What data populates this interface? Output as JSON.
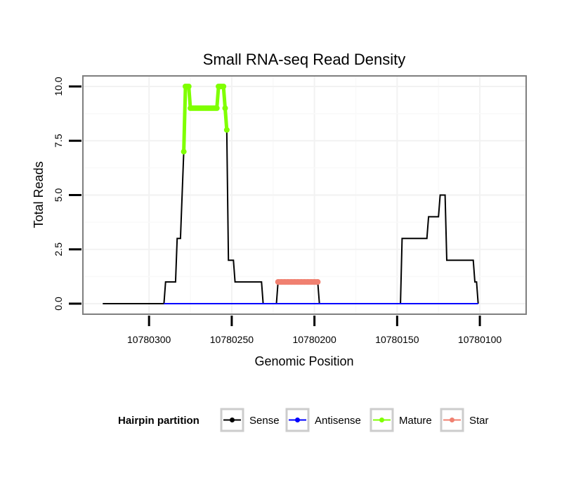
{
  "chart_data": {
    "type": "line",
    "title": "Small RNA-seq Read Density",
    "xlabel": "Genomic Position",
    "ylabel": "Total Reads",
    "xlim": [
      10780340,
      10780072
    ],
    "ylim": [
      0,
      10.5
    ],
    "x_reversed": true,
    "xticks": [
      10780300,
      10780250,
      10780200,
      10780150,
      10780100
    ],
    "xtick_labels": [
      "10780300",
      "10780250",
      "10780200",
      "10780150",
      "10780100"
    ],
    "yticks": [
      0,
      2.5,
      5,
      7.5,
      10
    ],
    "ytick_labels": [
      "0.0",
      "2.5",
      "5.0",
      "7.5",
      "10.0"
    ],
    "grid": true,
    "legend_title": "Hairpin partition",
    "legend_position": "bottom",
    "series": [
      {
        "name": "Sense",
        "color": "#000000",
        "points": [
          [
            10780328,
            0
          ],
          [
            10780291,
            0
          ],
          [
            10780290,
            1
          ],
          [
            10780284,
            1
          ],
          [
            10780283,
            3
          ],
          [
            10780281,
            3
          ],
          [
            10780279,
            7
          ],
          [
            10780278,
            10
          ],
          [
            10780276,
            10
          ],
          [
            10780275,
            9
          ],
          [
            10780259,
            9
          ],
          [
            10780258,
            10
          ],
          [
            10780255,
            10
          ],
          [
            10780254,
            9
          ],
          [
            10780253,
            8
          ],
          [
            10780252,
            2
          ],
          [
            10780249,
            2
          ],
          [
            10780248,
            1
          ],
          [
            10780232,
            1
          ],
          [
            10780231,
            0
          ],
          [
            10780223,
            0
          ],
          [
            10780222,
            1
          ],
          [
            10780198,
            1
          ],
          [
            10780197,
            0
          ],
          [
            10780148,
            0
          ],
          [
            10780147,
            3
          ],
          [
            10780132,
            3
          ],
          [
            10780131,
            4
          ],
          [
            10780125,
            4
          ],
          [
            10780124,
            5
          ],
          [
            10780121,
            5
          ],
          [
            10780120,
            2
          ],
          [
            10780104,
            2
          ],
          [
            10780103,
            1
          ],
          [
            10780102,
            1
          ],
          [
            10780101,
            0
          ]
        ]
      },
      {
        "name": "Antisense",
        "color": "#0000ff",
        "points": [
          [
            10780291,
            0
          ],
          [
            10780101,
            0
          ]
        ]
      },
      {
        "name": "Mature",
        "color": "#7fff00",
        "points": [
          [
            10780279,
            7
          ],
          [
            10780278,
            10
          ],
          [
            10780277,
            10
          ],
          [
            10780276,
            10
          ],
          [
            10780275,
            9
          ],
          [
            10780274,
            9
          ],
          [
            10780273,
            9
          ],
          [
            10780272,
            9
          ],
          [
            10780271,
            9
          ],
          [
            10780270,
            9
          ],
          [
            10780269,
            9
          ],
          [
            10780268,
            9
          ],
          [
            10780267,
            9
          ],
          [
            10780266,
            9
          ],
          [
            10780265,
            9
          ],
          [
            10780264,
            9
          ],
          [
            10780263,
            9
          ],
          [
            10780262,
            9
          ],
          [
            10780261,
            9
          ],
          [
            10780260,
            9
          ],
          [
            10780259,
            9
          ],
          [
            10780258,
            10
          ],
          [
            10780257,
            10
          ],
          [
            10780256,
            10
          ],
          [
            10780255,
            10
          ],
          [
            10780254,
            9
          ],
          [
            10780253,
            8
          ]
        ]
      },
      {
        "name": "Star",
        "color": "#f08070",
        "points": [
          [
            10780222,
            1
          ],
          [
            10780220,
            1
          ],
          [
            10780218,
            1
          ],
          [
            10780216,
            1
          ],
          [
            10780214,
            1
          ],
          [
            10780212,
            1
          ],
          [
            10780210,
            1
          ],
          [
            10780208,
            1
          ],
          [
            10780206,
            1
          ],
          [
            10780204,
            1
          ],
          [
            10780202,
            1
          ],
          [
            10780200,
            1
          ],
          [
            10780198,
            1
          ]
        ]
      }
    ]
  }
}
